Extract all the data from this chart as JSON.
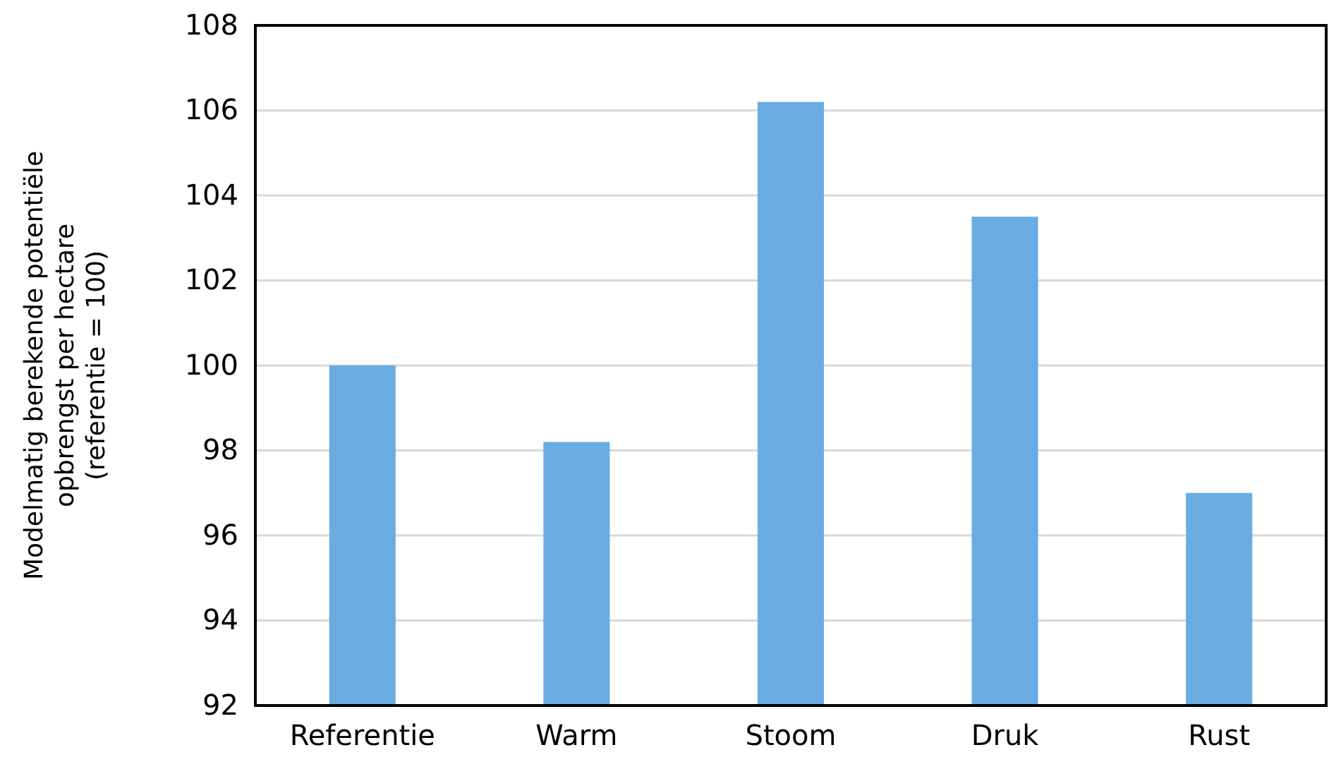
{
  "chart_data": {
    "type": "bar",
    "ylabel": "Modelmatig berekende potentiële opbrengst per hectare (referentie = 100)",
    "categories": [
      "Referentie",
      "Warm",
      "Stoom",
      "Druk",
      "Rust"
    ],
    "values": [
      100,
      98.2,
      106.2,
      103.5,
      97.0
    ],
    "color": "#6aace2",
    "ylim": [
      92,
      108
    ],
    "yticks": [
      92,
      94,
      96,
      98,
      100,
      102,
      104,
      106,
      108
    ],
    "grid": "y"
  }
}
